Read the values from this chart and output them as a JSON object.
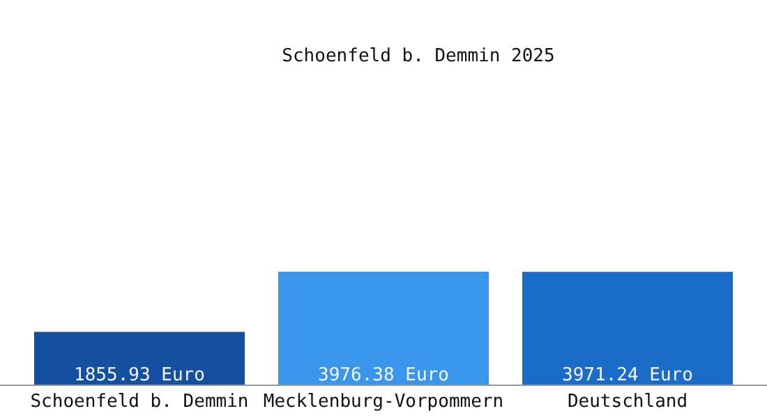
{
  "chart_data": {
    "type": "bar",
    "title": "Schoenfeld b. Demmin 2025",
    "categories": [
      "Schoenfeld b. Demmin",
      "Mecklenburg-Vorpommern",
      "Deutschland"
    ],
    "values": [
      1855.93,
      3976.38,
      3971.24
    ],
    "colors": [
      "#1550a0",
      "#3a96ea",
      "#1a6cc8"
    ],
    "value_labels": [
      "1855.93 Euro",
      "3976.38 Euro",
      "3971.24 Euro"
    ]
  }
}
